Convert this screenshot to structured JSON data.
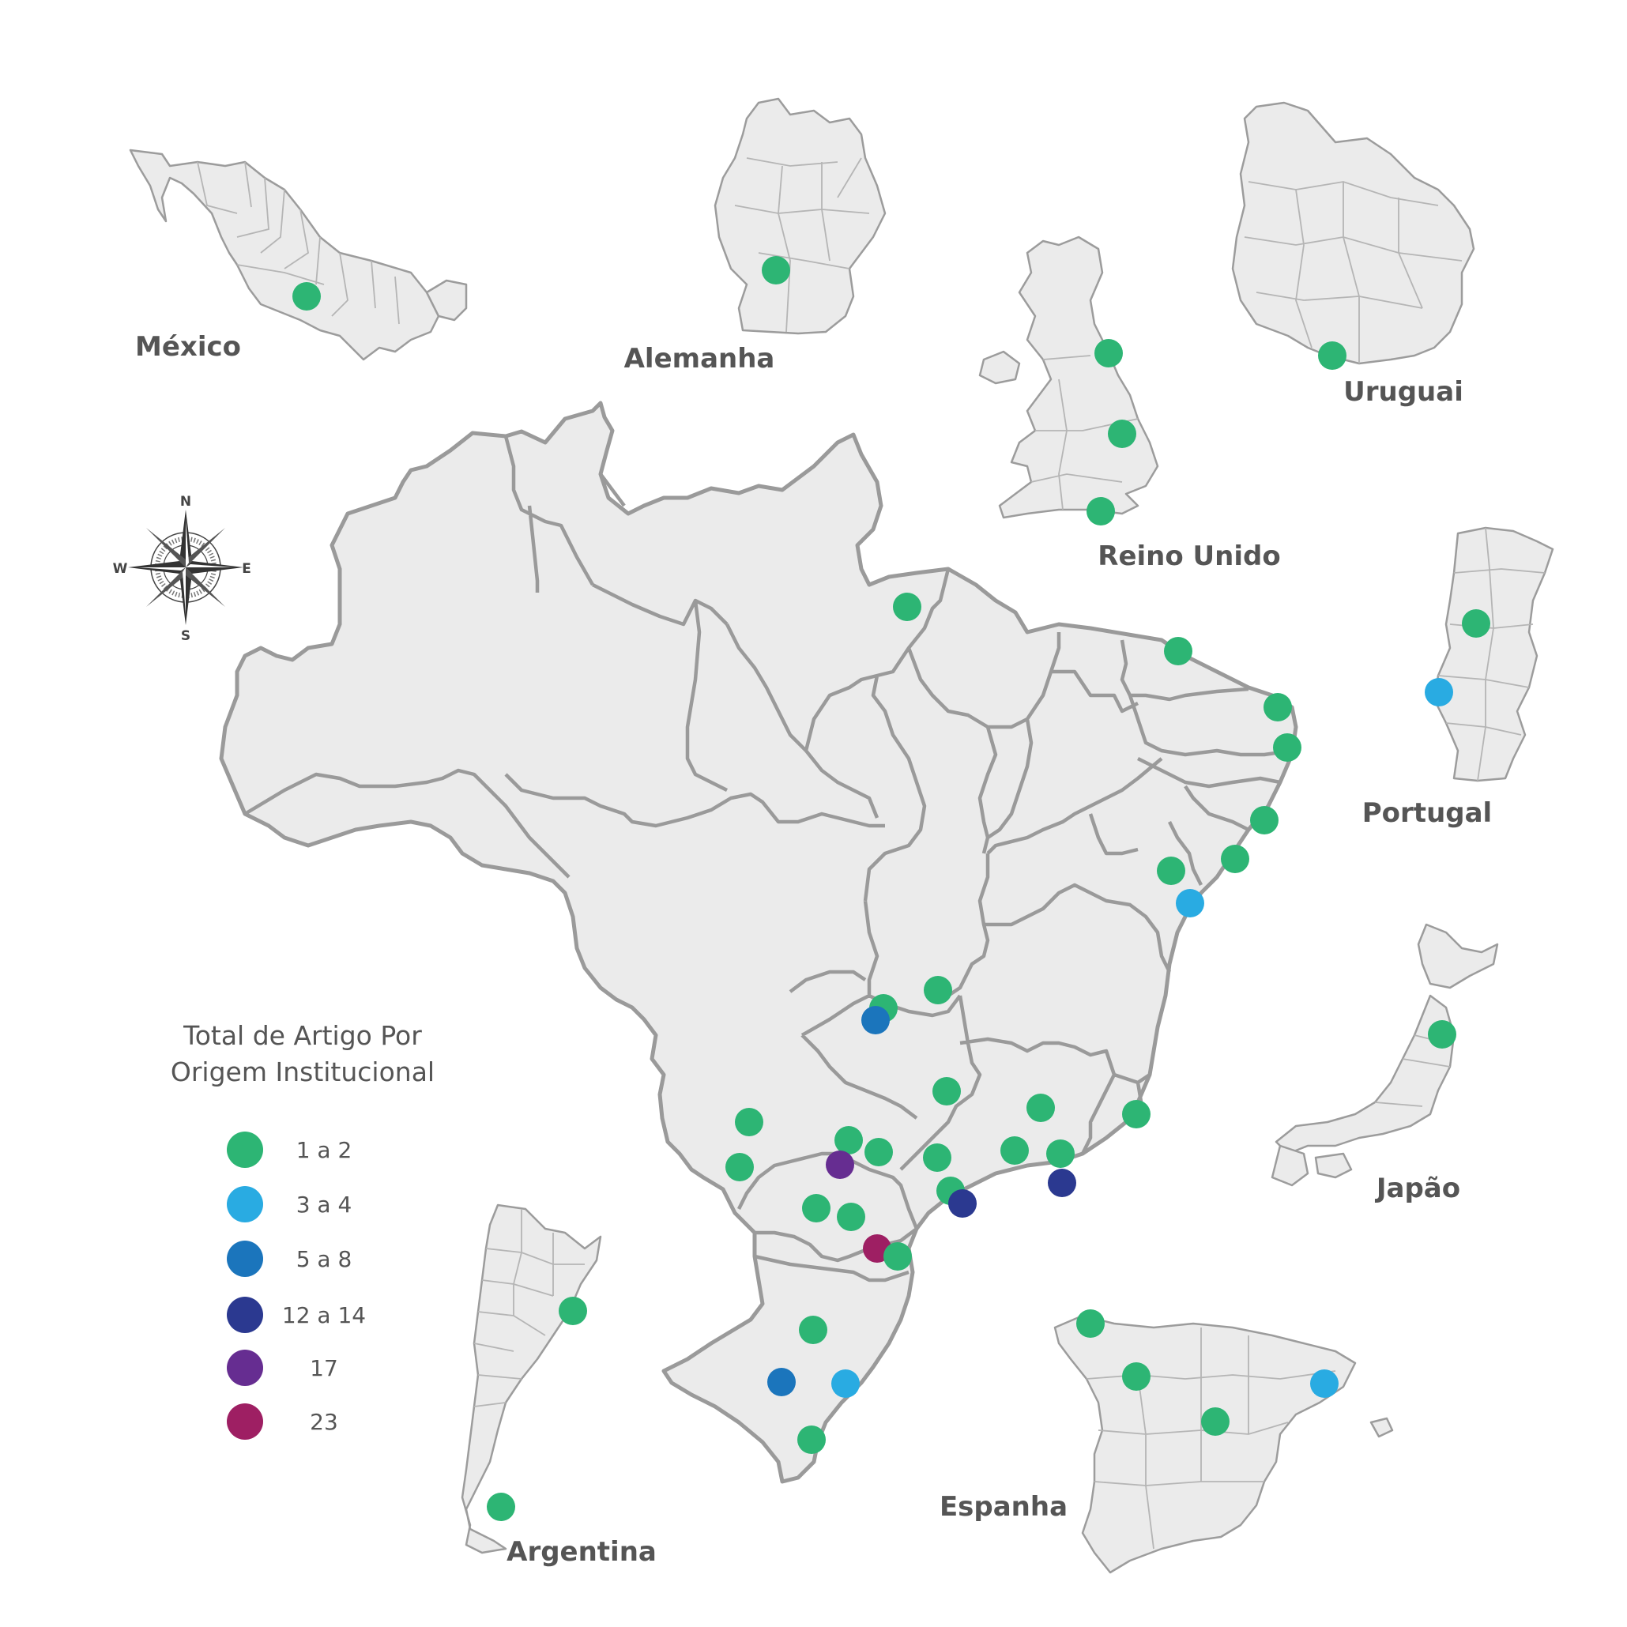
{
  "countries": [
    {
      "key": "mexico",
      "label": "México"
    },
    {
      "key": "alemanha",
      "label": "Alemanha"
    },
    {
      "key": "uruguai",
      "label": "Uruguai"
    },
    {
      "key": "reino_unido",
      "label": "Reino Unido"
    },
    {
      "key": "portugal",
      "label": "Portugal"
    },
    {
      "key": "japao",
      "label": "Japão"
    },
    {
      "key": "espanha",
      "label": "Espanha"
    },
    {
      "key": "argentina",
      "label": "Argentina"
    }
  ],
  "compass": {
    "n": "N",
    "s": "S",
    "e": "E",
    "w": "W"
  },
  "legend": {
    "title_line1": "Total de Artigo Por",
    "title_line2": "Origem Institucional",
    "items": [
      {
        "label": "1 a 2",
        "color": "#2db574"
      },
      {
        "label": "3 a 4",
        "color": "#29abe2"
      },
      {
        "label": "5 a 8",
        "color": "#1b75bc"
      },
      {
        "label": "12 a 14",
        "color": "#2b3990"
      },
      {
        "label": "17",
        "color": "#662d91"
      },
      {
        "label": "23",
        "color": "#9e1f63"
      }
    ]
  },
  "colors": {
    "land": "#ebebeb",
    "border": "#9a9a9a",
    "label": "#555555"
  }
}
